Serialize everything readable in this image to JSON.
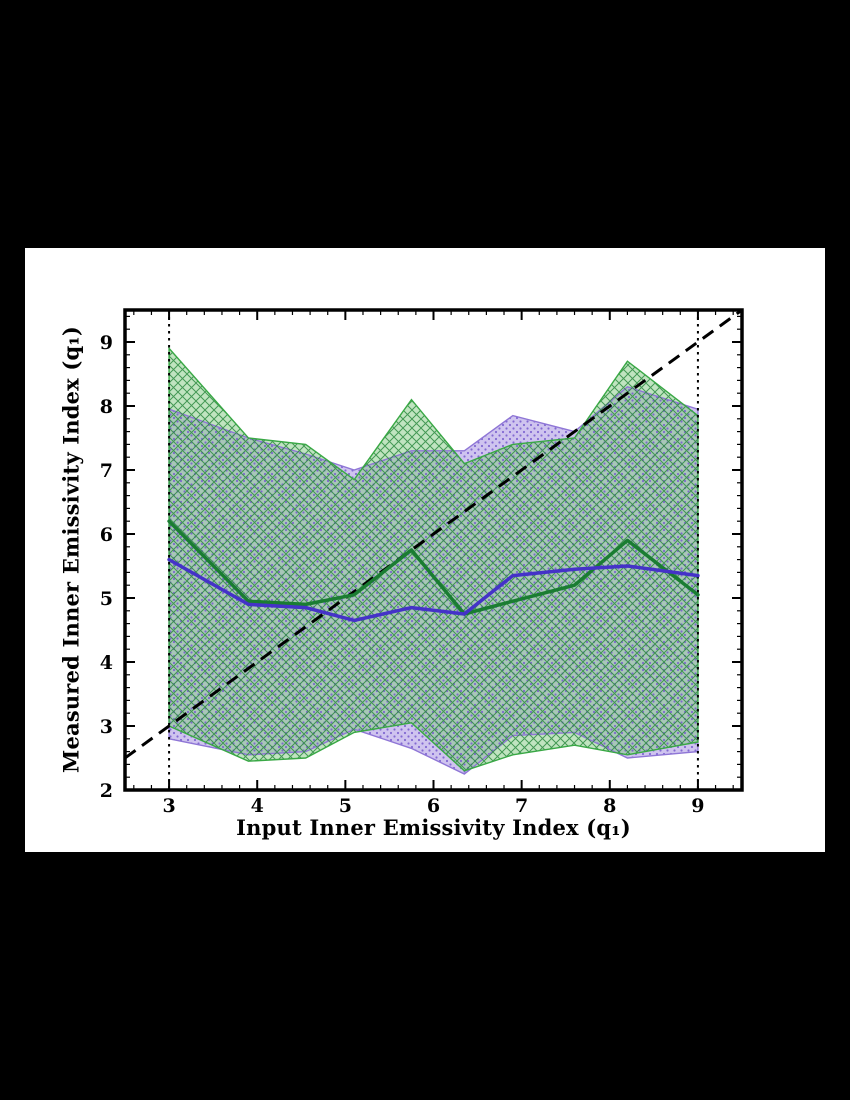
{
  "figure": {
    "background": "#000000",
    "panel_background": "#ffffff",
    "frame_color": "#000000"
  },
  "chart_data": {
    "type": "line",
    "title": "",
    "xlabel": "Input Inner Emissivity Index (q₁)",
    "ylabel": "Measured Inner Emissivity Index (q₁)",
    "xlim": [
      2.5,
      9.5
    ],
    "ylim": [
      2,
      9.5
    ],
    "xticks": [
      3,
      4,
      5,
      6,
      7,
      8,
      9
    ],
    "yticks": [
      2,
      3,
      4,
      5,
      6,
      7,
      8,
      9
    ],
    "minor_tick_step": 0.2,
    "grid": false,
    "legend": "none",
    "x": [
      3.0,
      3.9,
      4.55,
      5.1,
      5.75,
      6.35,
      6.9,
      7.6,
      8.2,
      9.0
    ],
    "series": [
      {
        "name": "green-median",
        "color": "#1a7d32",
        "width": 3.5,
        "values": [
          6.2,
          4.95,
          4.9,
          5.05,
          5.75,
          4.75,
          4.95,
          5.2,
          5.9,
          5.05
        ]
      },
      {
        "name": "purple-median",
        "color": "#4432c8",
        "width": 3.5,
        "values": [
          5.6,
          4.9,
          4.85,
          4.65,
          4.85,
          4.75,
          5.35,
          5.45,
          5.5,
          5.35
        ]
      }
    ],
    "bands": [
      {
        "name": "green-band",
        "fill": "#82c982",
        "fill_opacity": 0.5,
        "edge": "#39a845",
        "pattern": "crosshatch",
        "pattern_color": "#2e8b42",
        "upper": [
          8.9,
          7.5,
          7.4,
          6.85,
          8.1,
          7.1,
          7.4,
          7.5,
          8.7,
          7.85
        ],
        "lower": [
          3.0,
          2.45,
          2.5,
          2.9,
          3.05,
          2.3,
          2.55,
          2.7,
          2.55,
          2.75
        ]
      },
      {
        "name": "purple-band",
        "fill": "#a08ae0",
        "fill_opacity": 0.5,
        "edge": "#8f76d6",
        "pattern": "dots",
        "pattern_color": "#7a5fd0",
        "upper": [
          7.95,
          7.5,
          7.25,
          7.0,
          7.3,
          7.3,
          7.85,
          7.6,
          8.3,
          7.95
        ],
        "lower": [
          2.8,
          2.55,
          2.6,
          2.95,
          2.65,
          2.25,
          2.85,
          2.9,
          2.5,
          2.6
        ]
      }
    ],
    "reference_lines": {
      "identity": {
        "style": "dashed",
        "color": "#000000",
        "width": 3,
        "from": 2.5,
        "to": 9.5
      },
      "vertical": {
        "style": "dotted",
        "color": "#000000",
        "width": 2,
        "positions": [
          3,
          9
        ]
      }
    }
  }
}
